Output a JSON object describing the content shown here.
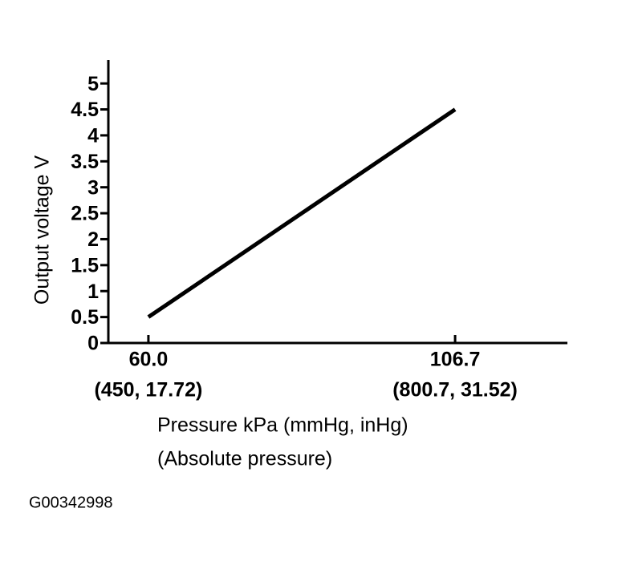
{
  "chart_data": {
    "type": "line",
    "y_label": "Output voltage V",
    "x_label": [
      "Pressure kPa (mmHg, inHg)",
      "(Absolute pressure)"
    ],
    "figure_id": "G00342998",
    "x": [
      60.0,
      106.7
    ],
    "series": [
      {
        "color": "#000000",
        "values": [
          0.5,
          4.5
        ]
      }
    ],
    "xlim": [
      53.9,
      123.8
    ],
    "ylim": [
      0,
      5.45
    ],
    "xticks": [
      {
        "value": 60.0,
        "label": "60.0",
        "sublabel": "(450, 17.72)"
      },
      {
        "value": 106.7,
        "label": "106.7",
        "sublabel": "(800.7, 31.52)"
      }
    ],
    "yticks": [
      0,
      0.5,
      1,
      1.5,
      2,
      2.5,
      3,
      3.5,
      4,
      4.5,
      5
    ]
  }
}
